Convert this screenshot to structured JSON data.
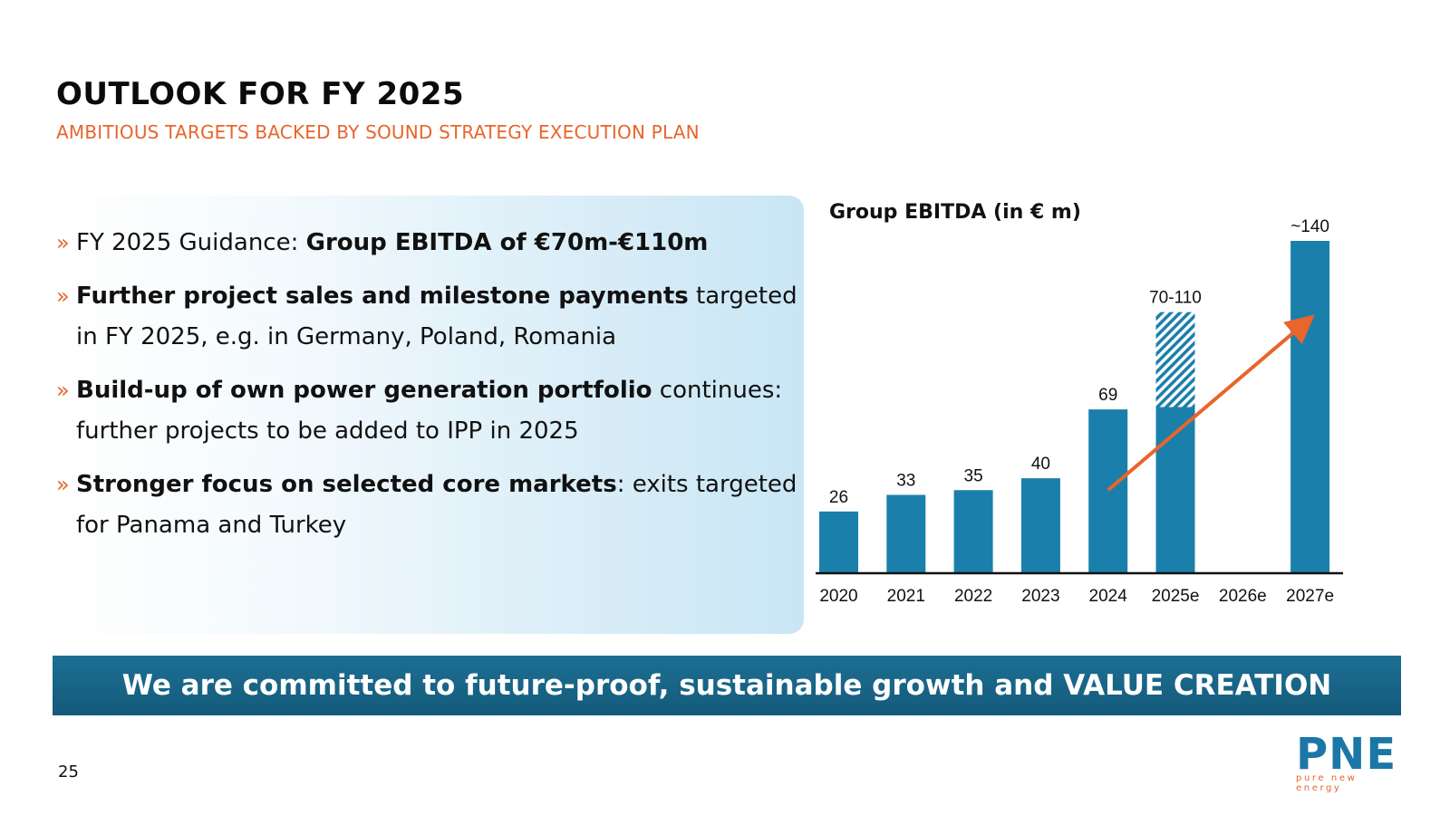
{
  "header": {
    "title": "OUTLOOK FOR FY 2025",
    "subtitle": "AMBITIOUS TARGETS BACKED BY SOUND STRATEGY EXECUTION PLAN"
  },
  "bullets": [
    {
      "pre": "FY 2025 Guidance: ",
      "bold": "Group EBITDA of €70m-€110m",
      "post": ""
    },
    {
      "pre": "",
      "bold": "Further project sales and milestone payments",
      "post": " targeted in FY 2025, e.g. in Germany, Poland, Romania"
    },
    {
      "pre": "",
      "bold": "Build-up of own power generation portfolio",
      "post": " continues: further projects to be added to IPP in 2025"
    },
    {
      "pre": "",
      "bold": "Stronger focus on selected core markets",
      "post": ": exits targeted for Panama and Turkey"
    }
  ],
  "bullet_marker": "»",
  "banner": "We are committed to future-proof, sustainable growth and VALUE CREATION",
  "page_number": "25",
  "logo": {
    "name": "PNE",
    "tagline": "pure new energy"
  },
  "colors": {
    "bar": "#1b7fab",
    "accent": "#e8652b",
    "banner": "#17628a",
    "axis": "#111111"
  },
  "chart_data": {
    "type": "bar",
    "title": "Group EBITDA (in € m)",
    "categories": [
      "2020",
      "2021",
      "2022",
      "2023",
      "2024",
      "2025e",
      "2026e",
      "2027e"
    ],
    "values": [
      26,
      33,
      35,
      40,
      69,
      70,
      null,
      140
    ],
    "range_upper": [
      null,
      null,
      null,
      null,
      null,
      110,
      null,
      null
    ],
    "labels": [
      "26",
      "33",
      "35",
      "40",
      "69",
      "70-110",
      "",
      "~140"
    ],
    "ylim": [
      0,
      140
    ],
    "trend_arrow": {
      "from": {
        "category": "2024",
        "value": 35
      },
      "to": {
        "category": "2027e",
        "value": 106
      }
    }
  }
}
